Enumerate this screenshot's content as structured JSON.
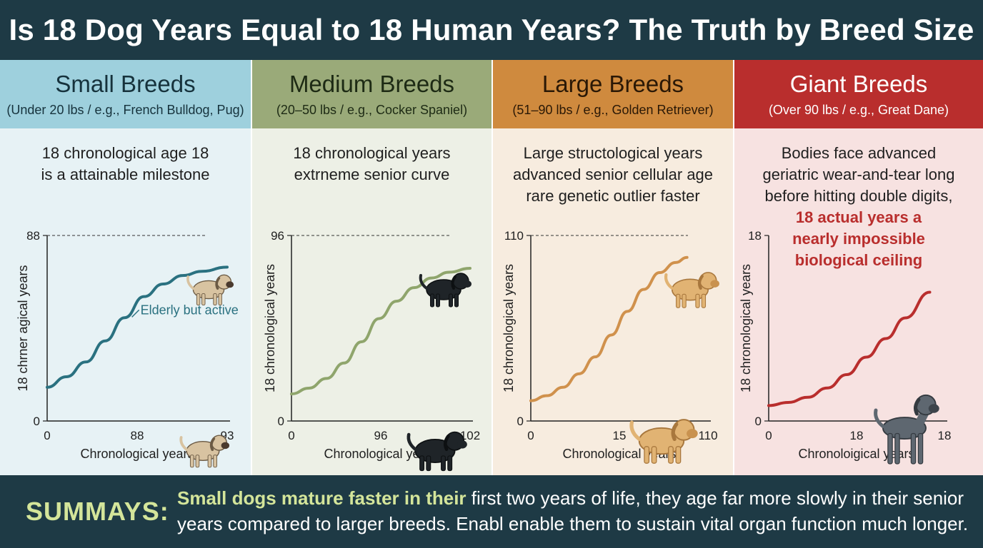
{
  "title": "Is 18 Dog Years Equal to 18 Human Years? The Truth by Breed Size",
  "panels": [
    {
      "key": "small",
      "title": "Small Breeds",
      "subtitle": "(Under 20 lbs / e.g., French Bulldog, Pug)",
      "desc_lines": [
        "18 chronological age 18",
        "is a attainable milestone"
      ],
      "highlight_lines": [],
      "color": "#2a7180",
      "dog_icons": [
        "pug-icon",
        "pug-icon"
      ]
    },
    {
      "key": "medium",
      "title": "Medium Breeds",
      "subtitle": "(20–50 lbs / e.g., Cocker Spaniel)",
      "desc_lines": [
        "18 chronological years",
        "extrneme senior curve"
      ],
      "highlight_lines": [],
      "color": "#8fa56c",
      "dog_icons": [
        "cocker-spaniel-icon",
        "cocker-spaniel-icon"
      ]
    },
    {
      "key": "large",
      "title": "Large Breeds",
      "subtitle": "(51–90 lbs / e.g., Golden Retriever)",
      "desc_lines": [
        "Large structological years",
        "advanced senior cellular age",
        "rare genetic outlier faster"
      ],
      "highlight_lines": [],
      "color": "#d0914c",
      "dog_icons": [
        "golden-retriever-icon",
        "golden-retriever-icon"
      ]
    },
    {
      "key": "giant",
      "title": "Giant Breeds",
      "subtitle": "(Over 90 lbs / e.g., Great Dane)",
      "desc_lines": [
        "Bodies face advanced",
        "geriatric wear-and-tear long",
        "before hitting double digits,"
      ],
      "highlight_lines": [
        "18 actual years a",
        "nearly impossible",
        "biological ceiling"
      ],
      "color": "#b92e2d",
      "dog_icons": [
        "great-dane-icon"
      ]
    }
  ],
  "chart_data": [
    {
      "type": "line",
      "panel": "small",
      "xlabel": "Chronological years",
      "ylabel": "18 chrner agical years",
      "xticks": [
        "0",
        "88",
        "93"
      ],
      "yticks": [
        "0",
        "88"
      ],
      "xlim": [
        0,
        93
      ],
      "ylim": [
        0,
        88
      ],
      "x_positions": [
        0,
        0.5,
        1
      ],
      "reference_line_y": 88,
      "series": [
        {
          "x": [
            0,
            10,
            20,
            30,
            40,
            50,
            60,
            70,
            80,
            93
          ],
          "y": [
            16,
            21,
            28,
            38,
            49,
            59,
            65,
            69,
            71,
            73
          ]
        }
      ],
      "annotations": [
        {
          "text": "Elderly but active",
          "x": 46,
          "y": 52
        }
      ]
    },
    {
      "type": "line",
      "panel": "medium",
      "xlabel": "Chronological years",
      "ylabel": "18 chronological years",
      "xticks": [
        "0",
        "96",
        "102"
      ],
      "yticks": [
        "0",
        "96"
      ],
      "xlim": [
        0,
        102
      ],
      "ylim": [
        0,
        96
      ],
      "x_positions": [
        0,
        0.5,
        1
      ],
      "reference_line_y": 96,
      "series": [
        {
          "x": [
            0,
            10,
            20,
            30,
            40,
            50,
            60,
            70,
            80,
            90,
            102
          ],
          "y": [
            14,
            17,
            22,
            30,
            41,
            53,
            62,
            69,
            74,
            77,
            79
          ]
        }
      ],
      "annotations": []
    },
    {
      "type": "line",
      "panel": "large",
      "xlabel": "Chronological years",
      "ylabel": "18 chronological years",
      "xticks": [
        "0",
        "15",
        "110"
      ],
      "yticks": [
        "0",
        "110"
      ],
      "xlim": [
        0,
        110
      ],
      "ylim": [
        0,
        110
      ],
      "x_positions": [
        0,
        0.5,
        1
      ],
      "reference_line_y": 110,
      "series": [
        {
          "x": [
            0,
            10,
            20,
            30,
            40,
            50,
            60,
            70,
            80,
            90,
            97
          ],
          "y": [
            12,
            15,
            20,
            28,
            38,
            51,
            65,
            78,
            88,
            94,
            97
          ]
        }
      ],
      "annotations": []
    },
    {
      "type": "line",
      "panel": "giant",
      "xlabel": "Chronoloigical years",
      "ylabel": "18 chronological years",
      "xticks": [
        "0",
        "18",
        "18"
      ],
      "yticks": [
        "0",
        "18"
      ],
      "xlim": [
        0,
        18
      ],
      "ylim": [
        0,
        18
      ],
      "x_positions": [
        0,
        0.5,
        1
      ],
      "reference_line_y": null,
      "series": [
        {
          "x": [
            0,
            2,
            4,
            6,
            8,
            10,
            12,
            14,
            16.5
          ],
          "y": [
            1.5,
            1.8,
            2.3,
            3.2,
            4.5,
            6.2,
            8.0,
            10.0,
            12.5
          ]
        }
      ],
      "annotations": []
    }
  ],
  "footer": {
    "label": "SUMMAYS:",
    "lead": "Small dogs mature faster in their",
    "text": " first two years of life, they age far more slowly in their senior years compared to larger breeds. Enabl enable them to sustain vital organ function much longer."
  }
}
